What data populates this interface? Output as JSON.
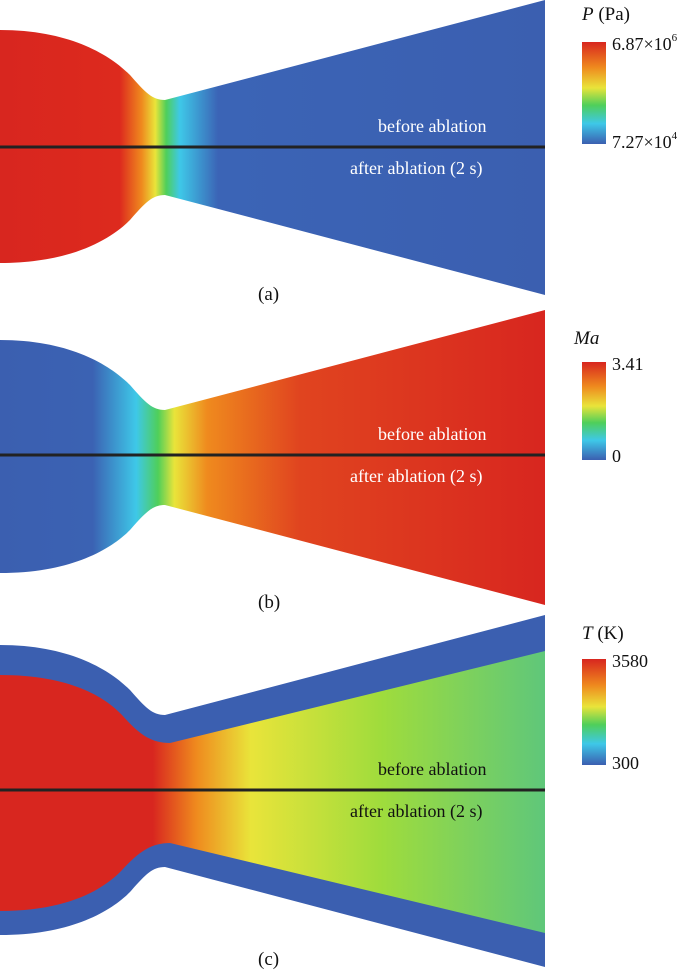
{
  "colors": {
    "red": "#d8261f",
    "orange": "#ef8a1e",
    "yellow": "#e9e43a",
    "green": "#4fcf5a",
    "cyan": "#3ec8e8",
    "blue": "#3b5fb0",
    "centerline": "#222222"
  },
  "panels": [
    {
      "id": "a",
      "caption": "(a)",
      "upper_label": "before ablation",
      "lower_label": "after ablation (2 s)",
      "legend": {
        "symbol": "P",
        "unit": " (Pa)",
        "max_base": "6.87×10",
        "max_exp": "6",
        "min_base": "7.27×10",
        "min_exp": "4"
      }
    },
    {
      "id": "b",
      "caption": "(b)",
      "upper_label": "before ablation",
      "lower_label": "after ablation (2 s)",
      "legend": {
        "symbol": "Ma",
        "unit": "",
        "max_base": "3.41",
        "max_exp": "",
        "min_base": "0",
        "min_exp": ""
      }
    },
    {
      "id": "c",
      "caption": "(c)",
      "upper_label": "before ablation",
      "lower_label": "after ablation (2 s)",
      "legend": {
        "symbol": "T",
        "unit": " (K)",
        "max_base": "3580",
        "max_exp": "",
        "min_base": "300",
        "min_exp": ""
      }
    }
  ]
}
